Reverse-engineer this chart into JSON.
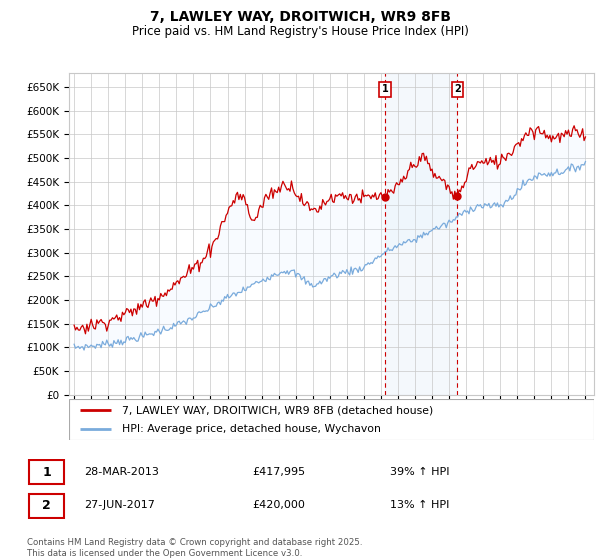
{
  "title": "7, LAWLEY WAY, DROITWICH, WR9 8FB",
  "subtitle": "Price paid vs. HM Land Registry's House Price Index (HPI)",
  "ylim": [
    0,
    680000
  ],
  "yticks": [
    0,
    50000,
    100000,
    150000,
    200000,
    250000,
    300000,
    350000,
    400000,
    450000,
    500000,
    550000,
    600000,
    650000
  ],
  "ytick_labels": [
    "£0",
    "£50K",
    "£100K",
    "£150K",
    "£200K",
    "£250K",
    "£300K",
    "£350K",
    "£400K",
    "£450K",
    "£500K",
    "£550K",
    "£600K",
    "£650K"
  ],
  "xlim_start": 1994.7,
  "xlim_end": 2025.5,
  "sale1_x": 2013.24,
  "sale1_y": 417995,
  "sale1_label": "1",
  "sale1_date": "28-MAR-2013",
  "sale1_price": "£417,995",
  "sale1_hpi": "39% ↑ HPI",
  "sale2_x": 2017.49,
  "sale2_y": 420000,
  "sale2_label": "2",
  "sale2_date": "27-JUN-2017",
  "sale2_price": "£420,000",
  "sale2_hpi": "13% ↑ HPI",
  "red_color": "#cc0000",
  "blue_color": "#7aabdc",
  "shade_color": "#ddeeff",
  "grid_color": "#c8c8c8",
  "bg_color": "#ffffff",
  "legend_label_red": "7, LAWLEY WAY, DROITWICH, WR9 8FB (detached house)",
  "legend_label_blue": "HPI: Average price, detached house, Wychavon",
  "footnote": "Contains HM Land Registry data © Crown copyright and database right 2025.\nThis data is licensed under the Open Government Licence v3.0."
}
